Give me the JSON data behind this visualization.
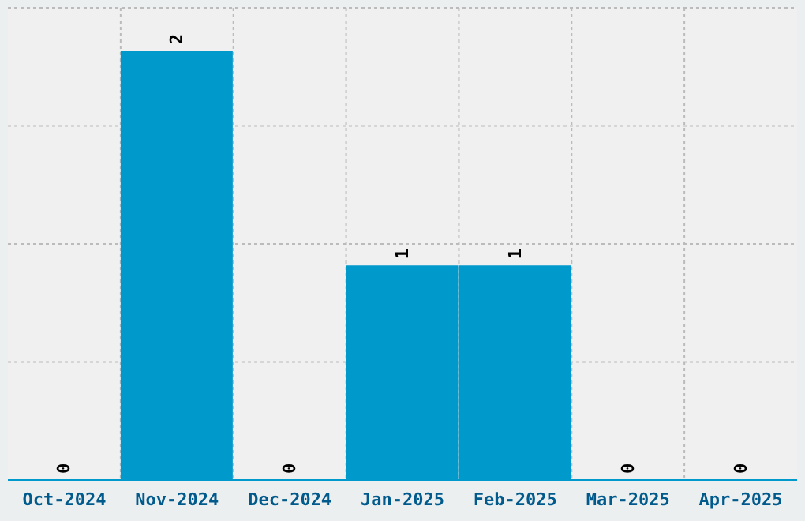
{
  "chart_data": {
    "type": "bar",
    "categories": [
      "Oct-2024",
      "Nov-2024",
      "Dec-2024",
      "Jan-2025",
      "Feb-2025",
      "Mar-2025",
      "Apr-2025"
    ],
    "values": [
      0,
      2,
      0,
      1,
      1,
      0,
      0
    ],
    "color": "#0099cc",
    "ylim": [
      0,
      2.2
    ],
    "yticks": [
      {
        "value": 0.55,
        "label": null
      },
      {
        "value": 1.1,
        "label": null
      },
      {
        "value": 1.65,
        "label": null
      }
    ],
    "tick_labels": "x",
    "grid": true,
    "data_labels": true
  }
}
